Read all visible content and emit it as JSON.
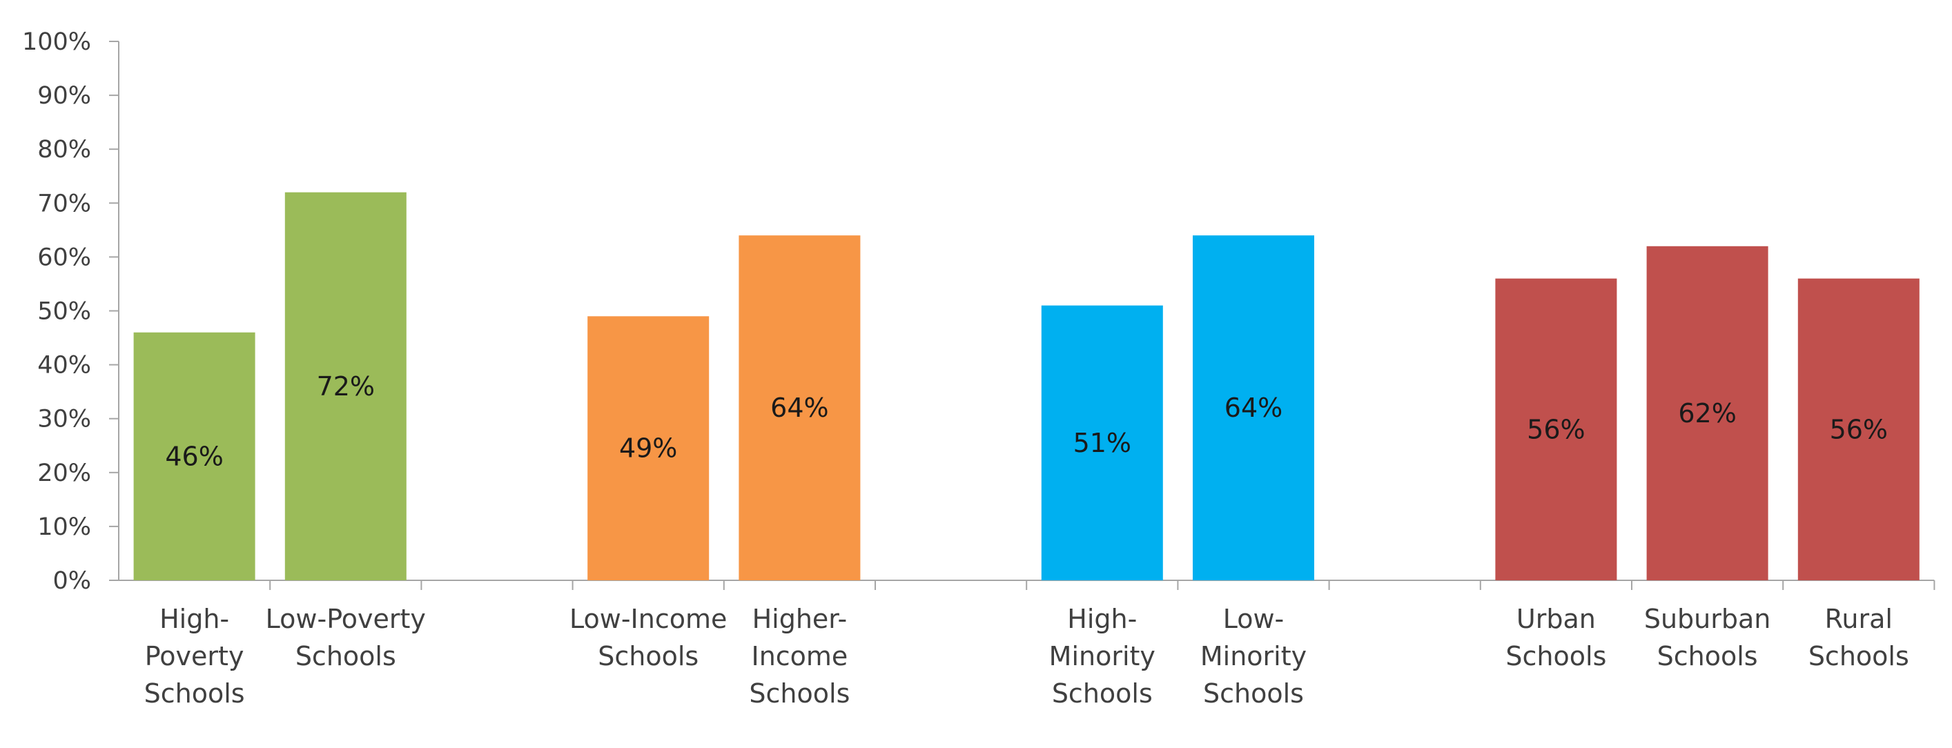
{
  "chart_data": {
    "type": "bar",
    "ylim": [
      0,
      100
    ],
    "ytick_step": 10,
    "ytick_suffix": "%",
    "value_suffix": "%",
    "grid": false,
    "legend": "none",
    "groups": [
      {
        "color": "#9bbb59",
        "categories": [
          [
            "High-",
            "Poverty",
            "Schools"
          ],
          [
            "Low-Poverty",
            "Schools"
          ]
        ],
        "values": [
          46,
          72
        ]
      },
      {
        "color": "#f79646",
        "categories": [
          [
            "Low-Income",
            "Schools"
          ],
          [
            "Higher-",
            "Income",
            "Schools"
          ]
        ],
        "values": [
          49,
          64
        ]
      },
      {
        "color": "#00b0f0",
        "categories": [
          [
            "High-",
            "Minority",
            "Schools"
          ],
          [
            "Low-",
            "Minority",
            "Schools"
          ]
        ],
        "values": [
          51,
          64
        ]
      },
      {
        "color": "#c0504d",
        "categories": [
          [
            "Urban",
            "Schools"
          ],
          [
            "Suburban",
            "Schools"
          ],
          [
            "Rural",
            "Schools"
          ]
        ],
        "values": [
          56,
          62,
          56
        ]
      }
    ]
  }
}
